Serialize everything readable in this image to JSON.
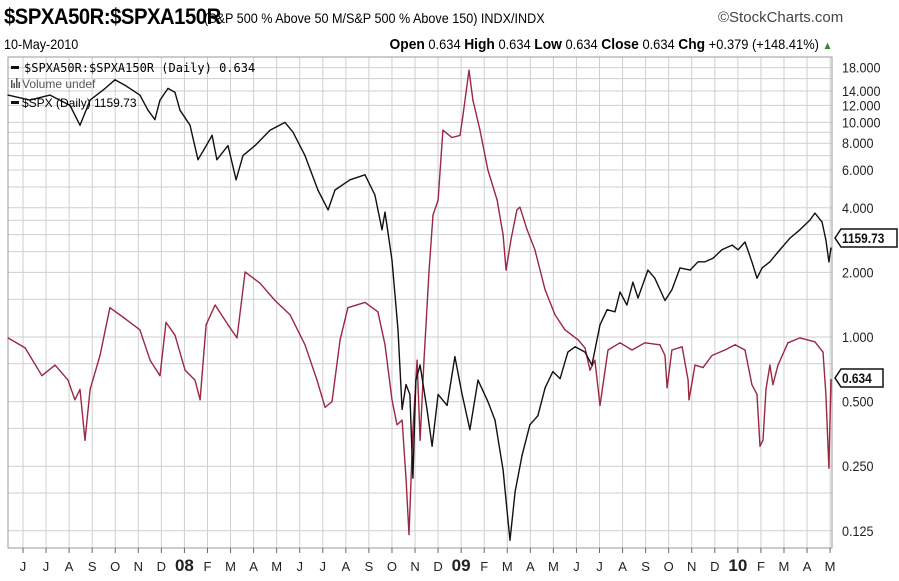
{
  "header": {
    "title": "$SPXA50R:$SPXA150R",
    "subtitle": "(S&P 500 % Above 50 M/S&P 500 % Above 150) INDX/INDX",
    "credit": "©StockCharts.com",
    "date": "10-May-2010",
    "open_label": "Open",
    "open": "0.634",
    "high_label": "High",
    "high": "0.634",
    "low_label": "Low",
    "low": "0.634",
    "close_label": "Close",
    "close": "0.634",
    "chg_label": "Chg",
    "chg": "+0.379 (+148.41%)",
    "chg_arrow": "▲"
  },
  "legend": {
    "ratio": "$SPXA50R:$SPXA150R (Daily) 0.634",
    "volume": "Volume undef",
    "spx": "$SPX (Daily) 1159.73"
  },
  "chart_data": {
    "type": "line",
    "title": "$SPXA50R:$SPXA150R",
    "yscale": "log",
    "ylim": [
      0.115,
      19
    ],
    "y_ticks": [
      18,
      14,
      12,
      10,
      8,
      6,
      4,
      2,
      1,
      0.5,
      0.25,
      0.125
    ],
    "y_tick_labels": [
      "18.000",
      "14.000",
      "12.000",
      "10.000",
      "8.000",
      "6.000",
      "4.000",
      "2.000",
      "1.000",
      "0.500",
      "0.250",
      "0.125"
    ],
    "x_unit": "months since Jun 2007",
    "x_tick_labels": [
      "J",
      "J",
      "A",
      "S",
      "O",
      "N",
      "D",
      "08",
      "F",
      "M",
      "A",
      "M",
      "J",
      "J",
      "A",
      "S",
      "O",
      "N",
      "D",
      "09",
      "F",
      "M",
      "A",
      "M",
      "J",
      "J",
      "A",
      "S",
      "O",
      "N",
      "D",
      "10",
      "F",
      "M",
      "A",
      "M"
    ],
    "last_value_labels": {
      "spx": "1159.73",
      "ratio": "0.634"
    },
    "colors": {
      "ratio": "#9b2743",
      "spx": "#111111",
      "grid": "#cfcfcf"
    },
    "series": [
      {
        "name": "$SPXA50R:$SPXA150R",
        "key": "ratio",
        "x": [
          -0.65,
          0.09,
          0.82,
          1.39,
          1.95,
          2.25,
          2.47,
          2.69,
          2.91,
          3.34,
          3.77,
          4.42,
          5.07,
          5.51,
          5.94,
          6.2,
          6.59,
          7.03,
          7.46,
          7.68,
          7.94,
          8.33,
          8.89,
          9.28,
          9.63,
          10.28,
          10.93,
          11.58,
          12.23,
          12.75,
          13.1,
          13.4,
          13.75,
          14.09,
          14.83,
          15.39,
          15.7,
          16.0,
          16.22,
          16.44,
          16.61,
          16.74,
          16.91,
          17.09,
          17.22,
          17.39,
          17.61,
          17.78,
          18.0,
          18.21,
          18.6,
          18.95,
          19.08,
          19.34,
          19.51,
          19.82,
          20.16,
          20.56,
          20.82,
          20.95,
          21.16,
          21.42,
          21.55,
          21.86,
          22.2,
          22.64,
          23.07,
          23.5,
          24.07,
          24.37,
          24.59,
          24.8,
          25.02,
          25.15,
          25.37,
          25.89,
          26.41,
          26.97,
          27.62,
          27.84,
          27.93,
          28.14,
          28.58,
          28.84,
          28.88,
          29.14,
          29.49,
          29.88,
          30.44,
          30.88,
          31.31,
          31.61,
          31.83,
          31.96,
          32.09,
          32.22,
          32.39,
          32.52,
          32.74,
          33.17,
          33.69,
          34.34,
          34.69,
          34.82,
          34.95,
          35.04
        ],
        "values": [
          0.99,
          0.89,
          0.66,
          0.74,
          0.63,
          0.51,
          0.57,
          0.33,
          0.57,
          0.82,
          1.37,
          1.22,
          1.08,
          0.78,
          0.66,
          1.17,
          1.02,
          0.7,
          0.63,
          0.51,
          1.14,
          1.41,
          1.14,
          0.99,
          2.01,
          1.78,
          1.48,
          1.27,
          0.92,
          0.63,
          0.47,
          0.5,
          0.97,
          1.37,
          1.45,
          1.31,
          0.92,
          0.51,
          0.39,
          0.41,
          0.22,
          0.12,
          0.37,
          0.78,
          0.33,
          0.78,
          2.05,
          3.7,
          4.35,
          9.2,
          8.5,
          8.7,
          10.8,
          17.5,
          12.7,
          9.2,
          6.0,
          4.35,
          2.99,
          2.05,
          2.83,
          3.91,
          4.03,
          3.16,
          2.55,
          1.66,
          1.27,
          1.08,
          0.97,
          0.89,
          0.7,
          0.78,
          0.48,
          0.6,
          0.87,
          0.94,
          0.87,
          0.94,
          0.92,
          0.82,
          0.58,
          0.87,
          0.9,
          0.63,
          0.51,
          0.74,
          0.72,
          0.82,
          0.87,
          0.92,
          0.87,
          0.6,
          0.54,
          0.31,
          0.33,
          0.57,
          0.74,
          0.6,
          0.74,
          0.94,
          0.99,
          0.95,
          0.85,
          0.54,
          0.245,
          0.634
        ]
      },
      {
        "name": "$SPX",
        "key": "spx",
        "x": [
          -0.65,
          0.3,
          1.17,
          2.04,
          2.47,
          2.91,
          3.56,
          3.99,
          4.42,
          5.07,
          5.42,
          5.72,
          5.94,
          6.29,
          6.59,
          6.81,
          7.24,
          7.59,
          7.89,
          8.2,
          8.41,
          8.89,
          9.24,
          9.54,
          10.06,
          10.71,
          11.36,
          11.71,
          12.23,
          12.79,
          13.23,
          13.53,
          14.18,
          14.83,
          15.26,
          15.57,
          15.7,
          16.0,
          16.26,
          16.44,
          16.61,
          16.78,
          16.91,
          17.04,
          17.22,
          17.52,
          17.74,
          18.0,
          18.39,
          18.73,
          19.04,
          19.38,
          19.73,
          20.16,
          20.47,
          20.82,
          21.03,
          21.12,
          21.34,
          21.64,
          21.98,
          22.33,
          22.64,
          22.98,
          23.29,
          23.63,
          23.94,
          24.37,
          24.67,
          25.02,
          25.33,
          25.67,
          25.89,
          26.19,
          26.45,
          26.67,
          27.1,
          27.4,
          27.84,
          28.14,
          28.49,
          28.93,
          29.27,
          29.58,
          29.92,
          30.31,
          30.75,
          31.01,
          31.31,
          31.61,
          31.83,
          32.05,
          32.39,
          32.74,
          33.26,
          33.69,
          34.13,
          34.34,
          34.65,
          34.82,
          34.95,
          35.04
        ],
        "values": [
          13.4,
          12.7,
          13.4,
          12.0,
          9.7,
          12.7,
          14.4,
          15.8,
          14.9,
          13.4,
          11.4,
          10.3,
          12.7,
          14.4,
          13.8,
          11.4,
          9.7,
          6.7,
          7.6,
          8.7,
          6.7,
          7.8,
          5.4,
          7.0,
          7.8,
          9.2,
          10.0,
          9.0,
          7.0,
          4.84,
          3.91,
          4.84,
          5.4,
          5.7,
          4.59,
          3.16,
          3.82,
          2.28,
          1.08,
          0.46,
          0.6,
          0.54,
          0.22,
          0.63,
          0.74,
          0.46,
          0.31,
          0.54,
          0.48,
          0.81,
          0.54,
          0.37,
          0.63,
          0.5,
          0.41,
          0.24,
          0.14,
          0.113,
          0.19,
          0.28,
          0.39,
          0.43,
          0.58,
          0.69,
          0.64,
          0.85,
          0.9,
          0.85,
          0.74,
          1.14,
          1.34,
          1.31,
          1.62,
          1.41,
          1.8,
          1.52,
          2.05,
          1.88,
          1.48,
          1.66,
          2.1,
          2.05,
          2.24,
          2.24,
          2.33,
          2.55,
          2.68,
          2.55,
          2.77,
          2.24,
          1.88,
          2.1,
          2.24,
          2.49,
          2.89,
          3.16,
          3.51,
          3.78,
          3.44,
          2.83,
          2.24,
          2.6
        ]
      }
    ]
  }
}
